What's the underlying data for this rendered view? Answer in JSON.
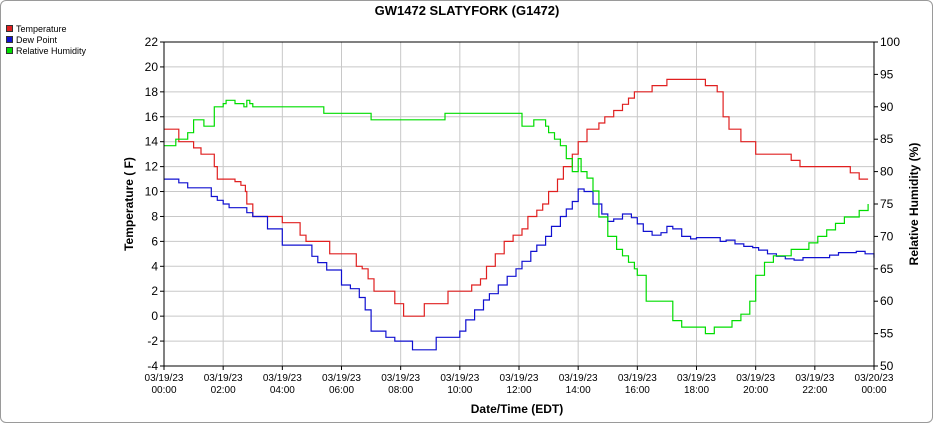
{
  "chart_data": {
    "type": "line",
    "title": "GW1472 SLATYFORK (G1472)",
    "xlabel": "Date/Time (EDT)",
    "ylabel": "Temperature ( F)",
    "ylabel_right": "Relative Humidity (%)",
    "ylim": [
      -4,
      22
    ],
    "ylim_right": [
      50,
      100
    ],
    "xlim": [
      0,
      24
    ],
    "grid": true,
    "legend_position": "top-left",
    "x_ticks": [
      {
        "date": "03/19/23",
        "time": "00:00",
        "x": 0
      },
      {
        "date": "03/19/23",
        "time": "02:00",
        "x": 2
      },
      {
        "date": "03/19/23",
        "time": "04:00",
        "x": 4
      },
      {
        "date": "03/19/23",
        "time": "06:00",
        "x": 6
      },
      {
        "date": "03/19/23",
        "time": "08:00",
        "x": 8
      },
      {
        "date": "03/19/23",
        "time": "10:00",
        "x": 10
      },
      {
        "date": "03/19/23",
        "time": "12:00",
        "x": 12
      },
      {
        "date": "03/19/23",
        "time": "14:00",
        "x": 14
      },
      {
        "date": "03/19/23",
        "time": "16:00",
        "x": 16
      },
      {
        "date": "03/19/23",
        "time": "18:00",
        "x": 18
      },
      {
        "date": "03/19/23",
        "time": "20:00",
        "x": 20
      },
      {
        "date": "03/19/23",
        "time": "22:00",
        "x": 22
      },
      {
        "date": "03/20/23",
        "time": "00:00",
        "x": 24
      }
    ],
    "y_ticks": [
      "22",
      "20",
      "18",
      "16",
      "14",
      "12",
      "10",
      "8",
      "6",
      "4",
      "2",
      "0",
      "-2",
      "-4"
    ],
    "y_ticks_right": [
      "100",
      "95",
      "90",
      "85",
      "80",
      "75",
      "70",
      "65",
      "60",
      "55",
      "50"
    ],
    "series": [
      {
        "name": "Temperature",
        "color": "#e02020",
        "axis": "left",
        "x": [
          0,
          0.25,
          0.5,
          0.9,
          1,
          1.25,
          1.4,
          1.7,
          1.8,
          2.3,
          2.4,
          2.6,
          2.75,
          2.8,
          3,
          3.5,
          4,
          4.6,
          4.8,
          5.5,
          5.6,
          6,
          6.1,
          6.5,
          6.7,
          6.9,
          7.1,
          7.8,
          8.1,
          8.7,
          8.8,
          9.4,
          9.6,
          10.2,
          10.4,
          10.7,
          10.9,
          11.2,
          11.5,
          11.8,
          12.1,
          12.3,
          12.6,
          12.8,
          13,
          13.3,
          13.5,
          13.8,
          14,
          14.3,
          14.7,
          14.9,
          15.2,
          15.5,
          15.7,
          15.9,
          16.3,
          16.5,
          17,
          17.2,
          17.5,
          17.8,
          18,
          18.3,
          18.7,
          18.9,
          19.1,
          19.5,
          19.8,
          20,
          20.3,
          21,
          21.2,
          21.5,
          22,
          22.5,
          22.8,
          23,
          23.2,
          23.5,
          23.8
        ],
        "values": [
          15,
          15,
          14,
          14,
          13.5,
          13,
          13,
          12,
          11,
          11,
          10.8,
          10.5,
          10,
          9,
          8,
          8,
          7.5,
          6.5,
          6,
          6,
          5,
          5,
          5,
          4,
          3.8,
          3,
          2,
          1,
          0,
          0,
          1,
          1,
          2,
          2,
          2.5,
          3,
          4,
          5,
          6,
          6.5,
          7,
          8,
          8.5,
          9,
          10,
          11,
          12,
          13,
          14,
          15,
          15.5,
          16,
          16.5,
          17,
          17.5,
          18,
          18,
          18.5,
          19,
          19,
          19,
          19,
          19,
          18.5,
          18,
          16,
          15,
          14,
          14,
          13,
          13,
          13,
          12.5,
          12,
          12,
          12,
          12,
          12,
          11.5,
          11,
          11
        ]
      },
      {
        "name": "Dew Point",
        "color": "#1010d0",
        "axis": "left",
        "x": [
          0,
          0.25,
          0.5,
          0.8,
          1,
          1.25,
          1.4,
          1.6,
          1.8,
          2,
          2.2,
          2.5,
          2.8,
          3,
          3.5,
          4,
          4.3,
          4.6,
          5,
          5.2,
          5.5,
          5.8,
          6,
          6.3,
          6.6,
          6.8,
          7,
          7.5,
          7.8,
          8.4,
          8.8,
          9.2,
          9.6,
          10,
          10.2,
          10.5,
          10.8,
          11,
          11.3,
          11.6,
          11.9,
          12.1,
          12.4,
          12.6,
          12.9,
          13.1,
          13.4,
          13.6,
          13.8,
          14,
          14.2,
          14.5,
          14.8,
          15,
          15.2,
          15.5,
          15.8,
          16,
          16.2,
          16.5,
          16.8,
          17,
          17.2,
          17.5,
          17.8,
          18,
          18.5,
          18.8,
          19,
          19.3,
          19.6,
          19.9,
          20.1,
          20.4,
          20.7,
          21,
          21.3,
          21.6,
          21.9,
          22.2,
          22.5,
          22.8,
          23.1,
          23.4,
          23.7,
          24
        ],
        "values": [
          11,
          11,
          10.7,
          10.3,
          10.3,
          10.3,
          10.3,
          9.6,
          9.3,
          9,
          8.7,
          8.7,
          8.3,
          8,
          7,
          5.7,
          5.7,
          5.7,
          4.8,
          4.3,
          3.7,
          3.7,
          2.5,
          2.2,
          1.5,
          0.5,
          -1.2,
          -1.7,
          -2,
          -2.7,
          -2.7,
          -1.7,
          -1.7,
          -1.2,
          -0.3,
          0.5,
          1.3,
          1.8,
          2.5,
          3.2,
          3.8,
          4.4,
          5.2,
          5.7,
          6.4,
          7.2,
          8,
          8.6,
          9.2,
          10.2,
          10,
          9,
          8.2,
          7.6,
          7.8,
          8.2,
          7.9,
          7.4,
          6.8,
          6.5,
          6.7,
          7.2,
          7,
          6.4,
          6.2,
          6.3,
          6.3,
          6,
          6.1,
          5.8,
          5.6,
          5.5,
          5.3,
          5,
          4.8,
          4.6,
          4.5,
          4.7,
          4.7,
          4.7,
          4.9,
          5.1,
          5.1,
          5.2,
          5,
          4.7
        ]
      },
      {
        "name": "Relative Humidity",
        "color": "#00dd00",
        "axis": "right",
        "x": [
          0,
          0.2,
          0.4,
          0.6,
          0.8,
          1,
          1.1,
          1.25,
          1.35,
          1.5,
          1.7,
          1.8,
          1.9,
          2,
          2.1,
          2.2,
          2.4,
          2.55,
          2.7,
          2.8,
          2.9,
          3,
          3.4,
          3.8,
          4,
          4.5,
          4.8,
          5,
          5.4,
          5.8,
          6,
          6.5,
          6.9,
          7,
          7.5,
          8,
          8.5,
          9,
          9.5,
          10,
          10.5,
          11,
          11.5,
          11.8,
          12,
          12.1,
          12.3,
          12.5,
          12.7,
          12.9,
          13,
          13.2,
          13.4,
          13.6,
          13.8,
          14,
          14.1,
          14.3,
          14.5,
          14.7,
          15,
          15.3,
          15.5,
          15.7,
          15.9,
          16,
          16.3,
          16.6,
          16.9,
          17.2,
          17.5,
          17.8,
          18,
          18.3,
          18.6,
          18.9,
          19.2,
          19.5,
          19.8,
          20,
          20.3,
          20.6,
          20.9,
          21.2,
          21.5,
          21.8,
          22.1,
          22.4,
          22.7,
          23,
          23.3,
          23.5,
          23.8
        ],
        "values": [
          84,
          84,
          85,
          85,
          86,
          88,
          88,
          88,
          87,
          87,
          90,
          90,
          90,
          90.5,
          91,
          91,
          90.5,
          90.5,
          90,
          91,
          90.5,
          90,
          90,
          90,
          90,
          90,
          90,
          90,
          89,
          89,
          89,
          89,
          89,
          88,
          88,
          88,
          88,
          88,
          89,
          89,
          89,
          89,
          89,
          89,
          89,
          87,
          87,
          88,
          88,
          87,
          86,
          85,
          84,
          82,
          80,
          82,
          80,
          79,
          77,
          73,
          70,
          68,
          67,
          66,
          65,
          64,
          60,
          60,
          60,
          57,
          56,
          56,
          56,
          55,
          56,
          56,
          57,
          58,
          60,
          64,
          66,
          67,
          67,
          68,
          68,
          69,
          70,
          71,
          72,
          73,
          73,
          74,
          75
        ]
      }
    ]
  }
}
